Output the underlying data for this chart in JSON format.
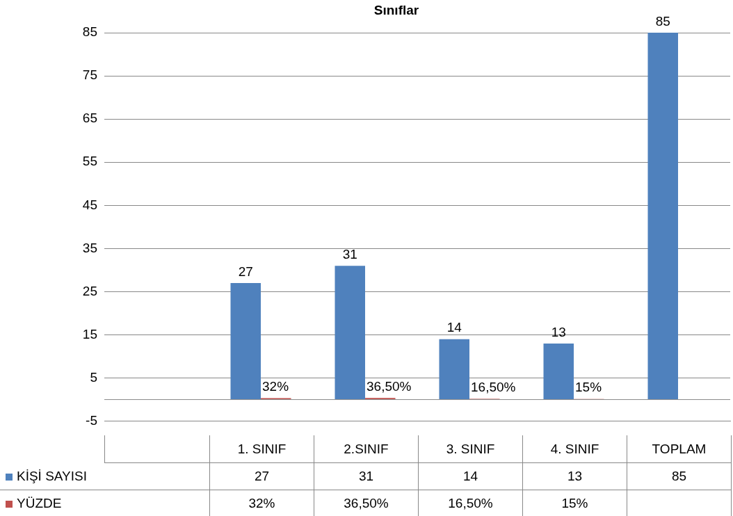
{
  "chart_data": {
    "type": "bar",
    "title": "Sınıflar",
    "categories": [
      null,
      "1. SINIF",
      "2.SINIF",
      "3. SINIF",
      "4. SINIF",
      "TOPLAM"
    ],
    "series": [
      {
        "name": "KİŞİ SAYISI",
        "color": "#4f81bd",
        "values": [
          null,
          27,
          31,
          14,
          13,
          85
        ],
        "value_labels": [
          null,
          "27",
          "31",
          "14",
          "13",
          "85"
        ]
      },
      {
        "name": "YÜZDE",
        "color": "#c0504d",
        "values": [
          null,
          0.32,
          0.365,
          0.165,
          0.15,
          null
        ],
        "value_labels": [
          null,
          "32%",
          "36,50%",
          "16,50%",
          "15%",
          null
        ]
      }
    ],
    "ylim": [
      -5,
      85
    ],
    "yticks": [
      -5,
      5,
      15,
      25,
      35,
      45,
      55,
      65,
      75,
      85
    ],
    "grid": "y",
    "legend": "bottom left"
  }
}
